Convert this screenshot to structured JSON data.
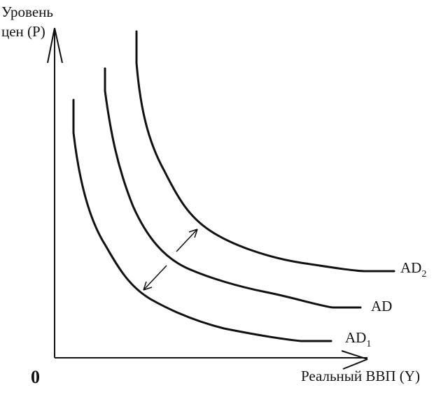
{
  "y_axis": {
    "label_lines": [
      "Уровень",
      "цен (P)"
    ]
  },
  "x_axis": {
    "label": "Реальный ВВП (Y)"
  },
  "origin": {
    "label": "0"
  },
  "curves": [
    {
      "label": "AD",
      "subscript": "2"
    },
    {
      "label": "AD"
    },
    {
      "label": "AD",
      "subscript": "1"
    }
  ]
}
